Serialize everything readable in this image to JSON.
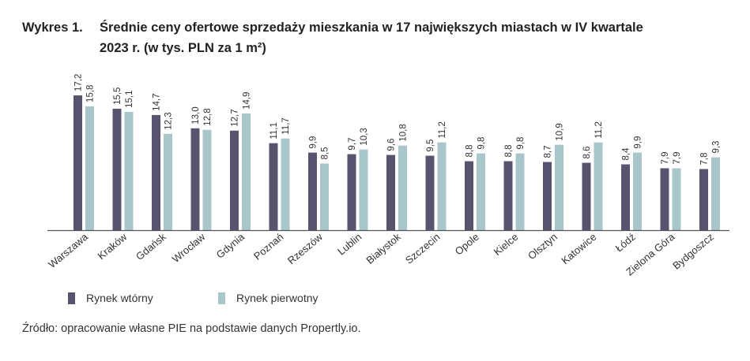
{
  "title_label": "Wykres 1.",
  "title_line1": "Średnie ceny ofertowe sprzedaży mieszkania w 17 największych miastach w IV kwartale",
  "title_line2": "2023 r. (w tys. PLN za 1 m²)",
  "source": "Źródło: opracowanie własne PIE na podstawie danych Propertly.io.",
  "chart_data": {
    "type": "bar",
    "title": "Średnie ceny ofertowe sprzedaży mieszkania w 17 największych miastach w IV kwartale 2023 r. (w tys. PLN za 1 m²)",
    "categories": [
      "Warszawa",
      "Kraków",
      "Gdańsk",
      "Wrocław",
      "Gdynia",
      "Poznań",
      "Rzeszów",
      "Lublin",
      "Białystok",
      "Szczecin",
      "Opole",
      "Kielce",
      "Olsztyn",
      "Katowice",
      "Łódź",
      "Zielona Góra",
      "Bydgoszcz"
    ],
    "series": [
      {
        "name": "Rynek wtórny",
        "color": "#595370",
        "values": [
          17.2,
          15.5,
          14.7,
          13.0,
          12.7,
          11.1,
          9.9,
          9.7,
          9.6,
          9.5,
          8.8,
          8.8,
          8.7,
          8.6,
          8.4,
          7.9,
          7.8
        ]
      },
      {
        "name": "Rynek pierwotny",
        "color": "#a9c6ca",
        "values": [
          15.8,
          15.1,
          12.3,
          12.8,
          14.9,
          11.7,
          8.5,
          10.3,
          10.8,
          11.2,
          9.8,
          9.8,
          10.9,
          11.2,
          9.9,
          7.9,
          9.3
        ]
      }
    ],
    "ylim": [
      0,
      18
    ],
    "grid": false,
    "legend_placement": "bottom-left",
    "decimal_separator": ","
  }
}
